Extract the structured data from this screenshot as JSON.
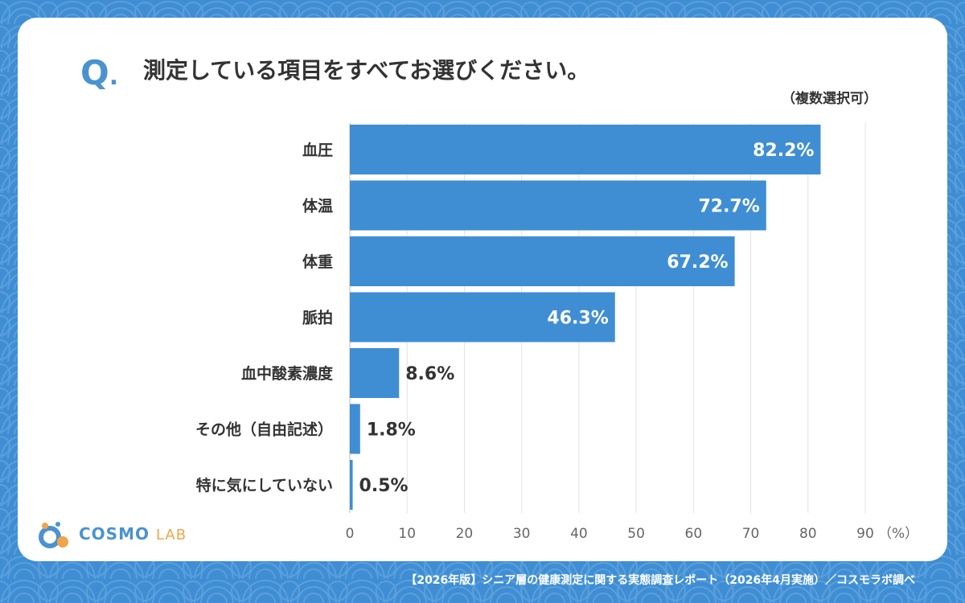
{
  "question": {
    "mark": "Q",
    "mark_dot": ".",
    "text": "測定している項目をすべてお選びください。",
    "note": "（複数選択可）"
  },
  "chart_data": {
    "type": "bar",
    "orientation": "horizontal",
    "categories": [
      "血圧",
      "体温",
      "体重",
      "脈拍",
      "血中酸素濃度",
      "その他（自由記述）",
      "特に気にしていない"
    ],
    "values": [
      82.2,
      72.7,
      67.2,
      46.3,
      8.6,
      1.8,
      0.5
    ],
    "value_labels": [
      "82.2%",
      "72.7%",
      "67.2%",
      "46.3%",
      "8.6%",
      "1.8%",
      "0.5%"
    ],
    "xlim": [
      0,
      90
    ],
    "xticks": [
      0,
      10,
      20,
      30,
      40,
      50,
      60,
      70,
      80,
      90
    ],
    "x_unit": "（%）",
    "grid": true,
    "bar_color": "#3f8ed4"
  },
  "logo": {
    "text": "COSMO",
    "text_accent": "LAB"
  },
  "footer": "【2026年版】シニア層の健康測定に関する実態調査レポート（2026年4月実施）／コスモラボ調べ",
  "colors": {
    "background": "#3f8ed4",
    "accent": "#4a93cf",
    "logo_accent": "#f0a54a"
  }
}
